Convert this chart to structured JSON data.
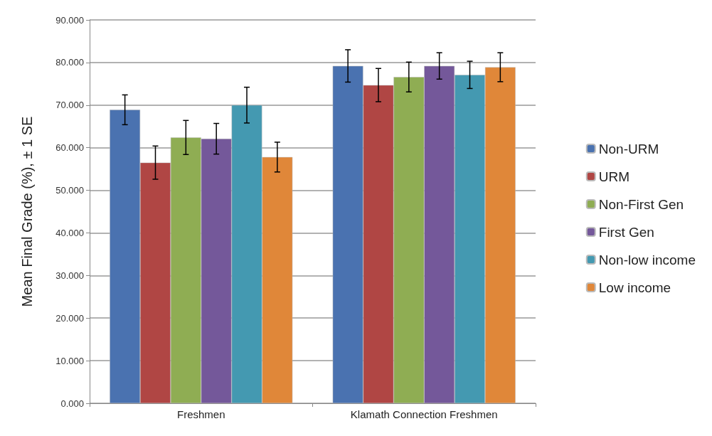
{
  "chart_data": {
    "type": "bar",
    "ylabel": "Mean Final Grade (%), ± 1 SE",
    "categories": [
      "Freshmen",
      "Klamath Connection Freshmen"
    ],
    "series": [
      {
        "name": "Non-URM",
        "color": "#4a72b0",
        "values": [
          68.9,
          79.2
        ],
        "errors": [
          3.5,
          3.8
        ]
      },
      {
        "name": "URM",
        "color": "#b04644",
        "values": [
          56.5,
          74.7
        ],
        "errors": [
          3.9,
          3.9
        ]
      },
      {
        "name": "Non-First Gen",
        "color": "#8fad53",
        "values": [
          62.4,
          76.6
        ],
        "errors": [
          4.0,
          3.5
        ]
      },
      {
        "name": "First Gen",
        "color": "#74589a",
        "values": [
          62.1,
          79.2
        ],
        "errors": [
          3.6,
          3.1
        ]
      },
      {
        "name": "Non-low income",
        "color": "#4499b1",
        "values": [
          70.0,
          77.1
        ],
        "errors": [
          4.2,
          3.2
        ]
      },
      {
        "name": "Low income",
        "color": "#e08739",
        "values": [
          57.8,
          78.9
        ],
        "errors": [
          3.5,
          3.4
        ]
      }
    ],
    "ylim": [
      0,
      90
    ],
    "yticks": [
      {
        "value": 0,
        "label": "0.000"
      },
      {
        "value": 10,
        "label": "10.000"
      },
      {
        "value": 20,
        "label": "20.000"
      },
      {
        "value": 30,
        "label": "30.000"
      },
      {
        "value": 40,
        "label": "40.000"
      },
      {
        "value": 50,
        "label": "50.000"
      },
      {
        "value": 60,
        "label": "60.000"
      },
      {
        "value": 70,
        "label": "70.000"
      },
      {
        "value": 80,
        "label": "80.000"
      },
      {
        "value": 90,
        "label": "90.000"
      }
    ],
    "grid": "y",
    "legend": "right"
  }
}
